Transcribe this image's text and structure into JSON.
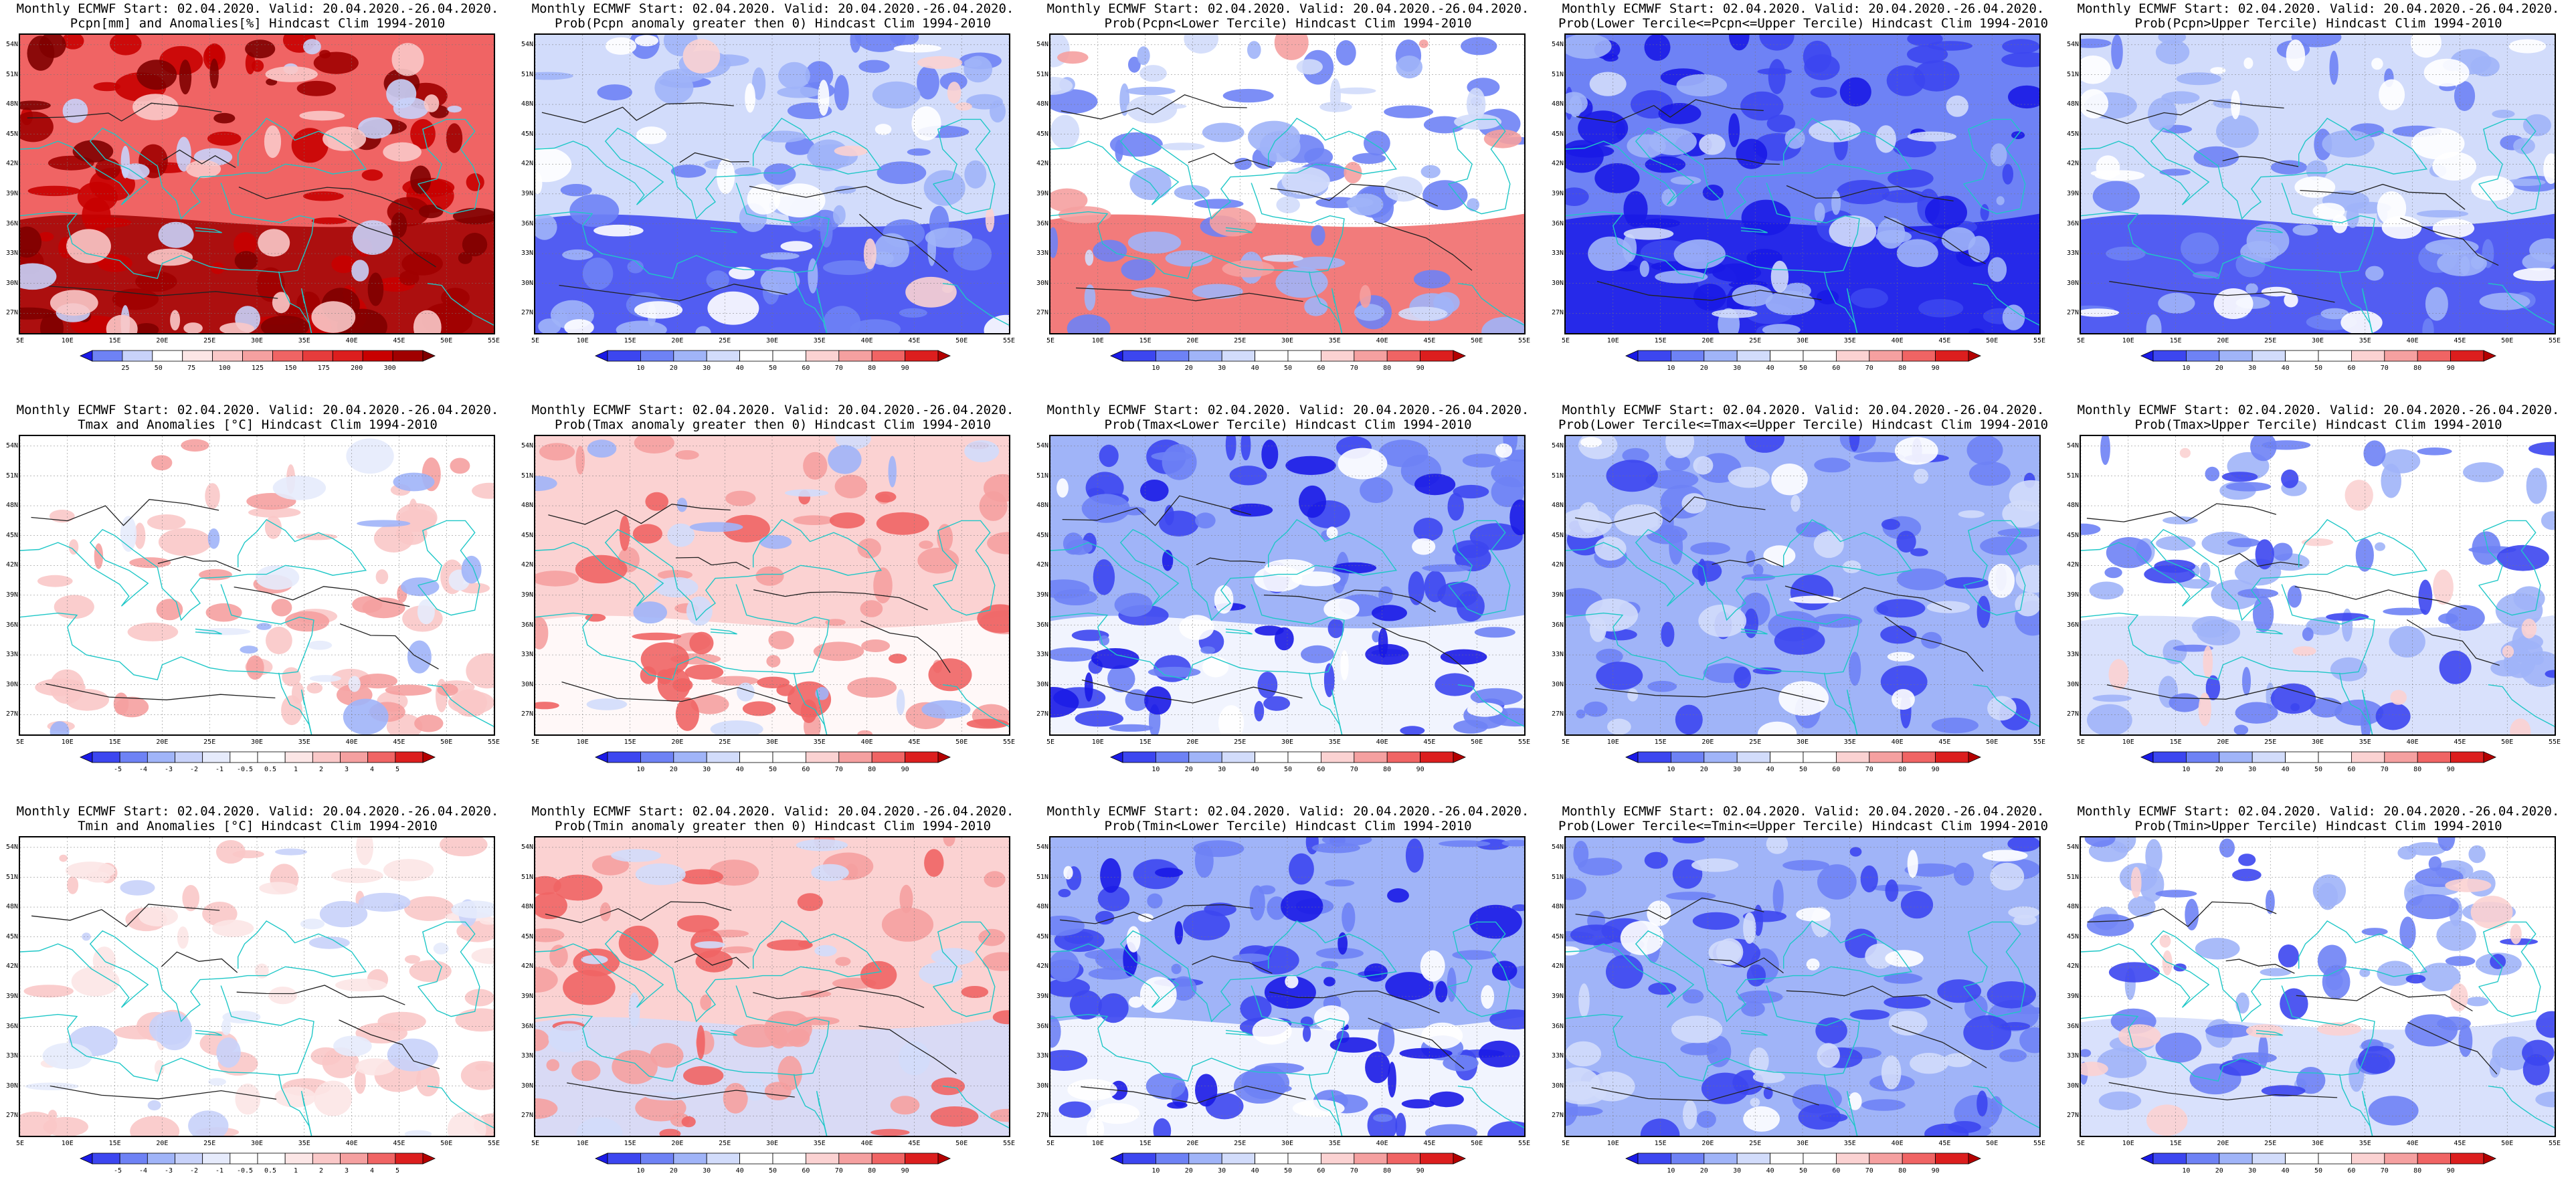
{
  "page": {
    "columns": 5,
    "rows": 3
  },
  "axes": {
    "lat_ticks": [
      "54N",
      "51N",
      "48N",
      "45N",
      "42N",
      "39N",
      "36N",
      "33N",
      "30N",
      "27N"
    ],
    "lat_values": [
      54,
      51,
      48,
      45,
      42,
      39,
      36,
      33,
      30,
      27
    ],
    "lat_range": [
      25,
      55
    ],
    "lon_ticks": [
      "5E",
      "10E",
      "15E",
      "20E",
      "25E",
      "30E",
      "35E",
      "40E",
      "45E",
      "50E",
      "55E"
    ],
    "lon_values": [
      5,
      10,
      15,
      20,
      25,
      30,
      35,
      40,
      45,
      50,
      55
    ],
    "lon_range": [
      5,
      55
    ]
  },
  "colors": {
    "coastline": "#1fc7c7",
    "contour": "#222222",
    "prob_scale": [
      "#1a1ae6",
      "#3c46f0",
      "#6e82f5",
      "#a0b4f8",
      "#d2dcfb",
      "#ffffff",
      "#ffffff",
      "#fbd2d2",
      "#f5a0a0",
      "#f06464",
      "#dc1e1e",
      "#b40000"
    ],
    "anom_scale": [
      "#1a1ae6",
      "#3c46f0",
      "#6e82f5",
      "#a0b4f8",
      "#c8d2fa",
      "#e6ebfc",
      "#ffffff",
      "#ffffff",
      "#fce6e6",
      "#fac8c8",
      "#f5a0a0",
      "#f06464",
      "#dc1e1e",
      "#b40000"
    ],
    "pcpn_scale": [
      "#1a1ae6",
      "#6e82f5",
      "#c8d2fa",
      "#ffffff",
      "#fce6e6",
      "#fac8c8",
      "#f5a0a0",
      "#f06464",
      "#e63c3c",
      "#dc1e1e",
      "#c80000",
      "#a00000",
      "#800000"
    ]
  },
  "colorbars": {
    "prob": {
      "ticks": [
        "10",
        "20",
        "30",
        "40",
        "50",
        "60",
        "70",
        "80",
        "90"
      ]
    },
    "anom": {
      "ticks": [
        "-5",
        "-4",
        "-3",
        "-2",
        "-1",
        "-0.5",
        "0.5",
        "1",
        "2",
        "3",
        "4",
        "5"
      ]
    },
    "pcpn": {
      "ticks": [
        "25",
        "50",
        "75",
        "100",
        "125",
        "150",
        "175",
        "200",
        "300"
      ]
    }
  },
  "panels": [
    {
      "id": "r1c1",
      "row": 0,
      "col": 0,
      "title1": "Monthly ECMWF Start: 02.04.2020. Valid: 20.04.2020.-26.04.2020.",
      "title2": "Pcpn[mm] and Anomalies[%] Hindcast Clim 1994-2010",
      "cbar": "pcpn",
      "field": "pcpn"
    },
    {
      "id": "r1c2",
      "row": 0,
      "col": 1,
      "title1": "Monthly ECMWF Start: 02.04.2020. Valid: 20.04.2020.-26.04.2020.",
      "title2": "Prob(Pcpn anomaly greater then 0) Hindcast Clim 1994-2010",
      "cbar": "prob",
      "field": "pcpn_gt0"
    },
    {
      "id": "r1c3",
      "row": 0,
      "col": 2,
      "title1": "Monthly ECMWF Start: 02.04.2020. Valid: 20.04.2020.-26.04.2020.",
      "title2": "Prob(Pcpn<Lower Tercile) Hindcast Clim 1994-2010",
      "cbar": "prob",
      "field": "pcpn_low"
    },
    {
      "id": "r1c4",
      "row": 0,
      "col": 3,
      "title1": "Monthly ECMWF Start: 02.04.2020. Valid: 20.04.2020.-26.04.2020.",
      "title2": "Prob(Lower Tercile<=Pcpn<=Upper Tercile) Hindcast Clim 1994-2010",
      "cbar": "prob",
      "field": "pcpn_mid"
    },
    {
      "id": "r1c5",
      "row": 0,
      "col": 4,
      "title1": "Monthly ECMWF Start: 02.04.2020. Valid: 20.04.2020.-26.04.2020.",
      "title2": "Prob(Pcpn>Upper Tercile) Hindcast Clim 1994-2010",
      "cbar": "prob",
      "field": "pcpn_up"
    },
    {
      "id": "r2c1",
      "row": 1,
      "col": 0,
      "title1": "Monthly ECMWF Start: 02.04.2020. Valid: 20.04.2020.-26.04.2020.",
      "title2": "Tmax and Anomalies [°C] Hindcast Clim 1994-2010",
      "cbar": "anom",
      "field": "tmax_anom"
    },
    {
      "id": "r2c2",
      "row": 1,
      "col": 1,
      "title1": "Monthly ECMWF Start: 02.04.2020. Valid: 20.04.2020.-26.04.2020.",
      "title2": "Prob(Tmax anomaly greater then 0) Hindcast Clim 1994-2010",
      "cbar": "prob",
      "field": "tmax_gt0"
    },
    {
      "id": "r2c3",
      "row": 1,
      "col": 2,
      "title1": "Monthly ECMWF Start: 02.04.2020. Valid: 20.04.2020.-26.04.2020.",
      "title2": "Prob(Tmax<Lower Tercile) Hindcast Clim 1994-2010",
      "cbar": "prob",
      "field": "tmax_low"
    },
    {
      "id": "r2c4",
      "row": 1,
      "col": 3,
      "title1": "Monthly ECMWF Start: 02.04.2020. Valid: 20.04.2020.-26.04.2020.",
      "title2": "Prob(Lower Tercile<=Tmax<=Upper Tercile) Hindcast Clim 1994-2010",
      "cbar": "prob",
      "field": "tmax_mid"
    },
    {
      "id": "r2c5",
      "row": 1,
      "col": 4,
      "title1": "Monthly ECMWF Start: 02.04.2020. Valid: 20.04.2020.-26.04.2020.",
      "title2": "Prob(Tmax>Upper Tercile) Hindcast Clim 1994-2010",
      "cbar": "prob",
      "field": "tmax_up"
    },
    {
      "id": "r3c1",
      "row": 2,
      "col": 0,
      "title1": "Monthly ECMWF Start: 02.04.2020. Valid: 20.04.2020.-26.04.2020.",
      "title2": "Tmin and Anomalies [°C] Hindcast Clim 1994-2010",
      "cbar": "anom",
      "field": "tmin_anom"
    },
    {
      "id": "r3c2",
      "row": 2,
      "col": 1,
      "title1": "Monthly ECMWF Start: 02.04.2020. Valid: 20.04.2020.-26.04.2020.",
      "title2": "Prob(Tmin anomaly greater then 0) Hindcast Clim 1994-2010",
      "cbar": "prob",
      "field": "tmin_gt0"
    },
    {
      "id": "r3c3",
      "row": 2,
      "col": 2,
      "title1": "Monthly ECMWF Start: 02.04.2020. Valid: 20.04.2020.-26.04.2020.",
      "title2": "Prob(Tmin<Lower Tercile) Hindcast Clim 1994-2010",
      "cbar": "prob",
      "field": "tmin_low"
    },
    {
      "id": "r3c4",
      "row": 2,
      "col": 3,
      "title1": "Monthly ECMWF Start: 02.04.2020. Valid: 20.04.2020.-26.04.2020.",
      "title2": "Prob(Lower Tercile<=Tmin<=Upper Tercile) Hindcast Clim 1994-2010",
      "cbar": "prob",
      "field": "tmin_mid"
    },
    {
      "id": "r3c5",
      "row": 2,
      "col": 4,
      "title1": "Monthly ECMWF Start: 02.04.2020. Valid: 20.04.2020.-26.04.2020.",
      "title2": "Prob(Tmin>Upper Tercile) Hindcast Clim 1994-2010",
      "cbar": "prob",
      "field": "tmin_up"
    }
  ]
}
